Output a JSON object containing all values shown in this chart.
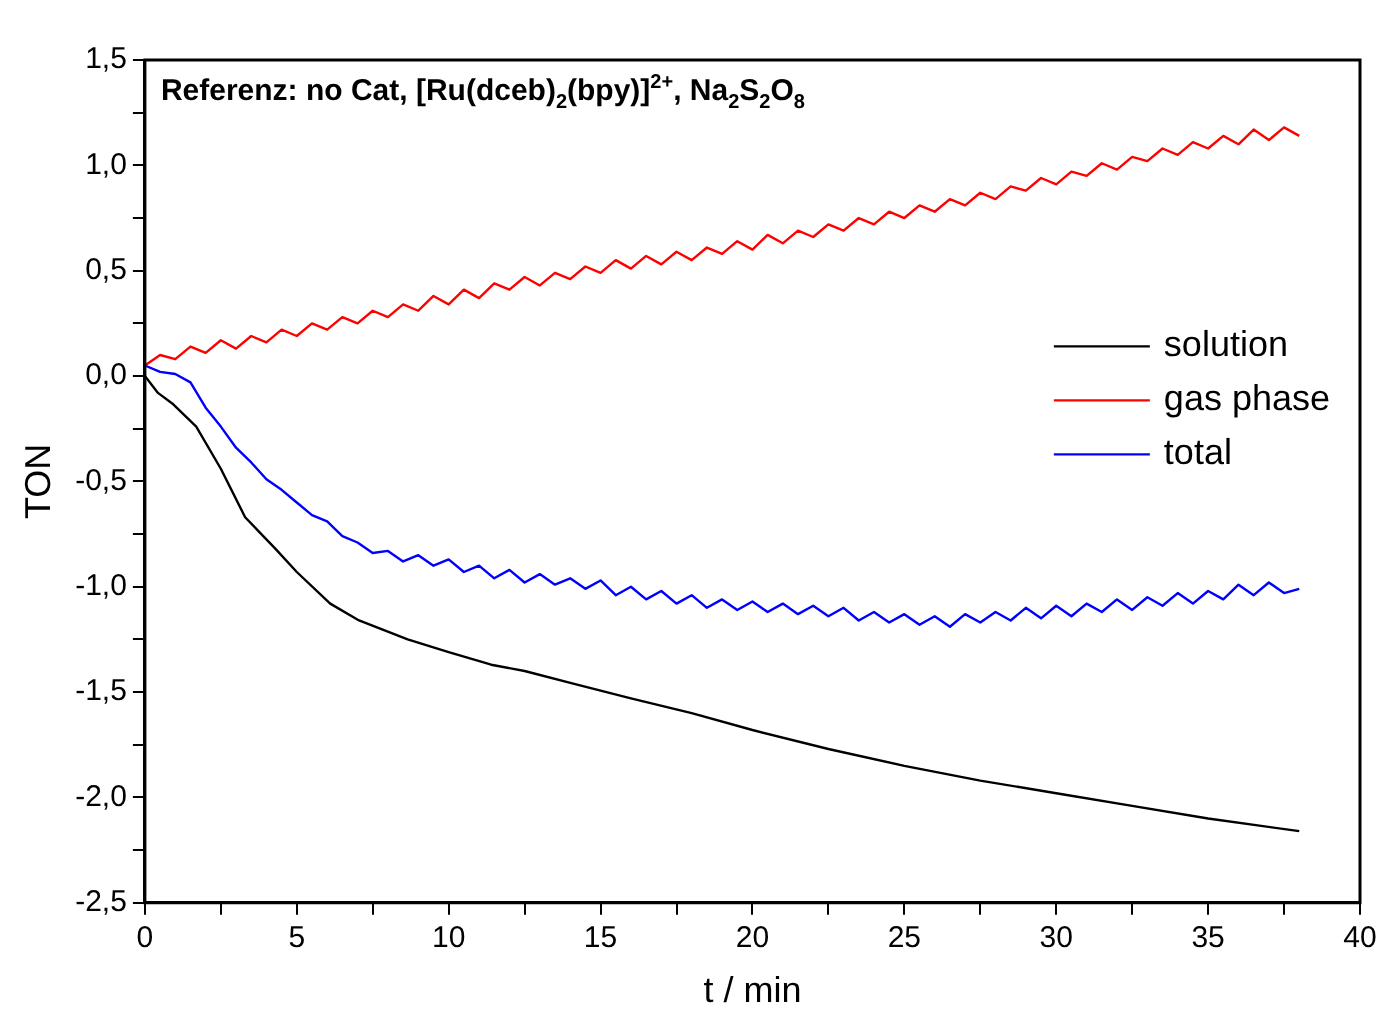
{
  "chart_data": {
    "type": "line",
    "xlabel": "t / min",
    "ylabel": "TON",
    "annotations": [
      "Referenz: no Cat, [Ru(dceb)$_{2}$(bpy)]$^{2+}$, Na$_{2}$S$_{2}$O$_{8}$"
    ],
    "xlim": [
      0,
      40
    ],
    "xticks": [
      0,
      {
        "value": 2.5,
        "label": null
      },
      5,
      {
        "value": 7.5,
        "label": null
      },
      10,
      {
        "value": 12.5,
        "label": null
      },
      15,
      {
        "value": 17.5,
        "label": null
      },
      20,
      {
        "value": 22.5,
        "label": null
      },
      25,
      {
        "value": 27.5,
        "label": null
      },
      30,
      {
        "value": 32.5,
        "label": null
      },
      35,
      {
        "value": 37.5,
        "label": null
      },
      40
    ],
    "ylim": [
      -2.5,
      1.5
    ],
    "yticks": [
      {
        "value": -2.5,
        "label": "-2,5"
      },
      {
        "value": -2.25,
        "label": null
      },
      {
        "value": -2,
        "label": "-2,0"
      },
      {
        "value": -1.75,
        "label": null
      },
      {
        "value": -1.5,
        "label": "-1,5"
      },
      {
        "value": -1.25,
        "label": null
      },
      {
        "value": -1,
        "label": "-1,0"
      },
      {
        "value": -0.75,
        "label": null
      },
      {
        "value": -0.5,
        "label": "-0,5"
      },
      {
        "value": -0.25,
        "label": null
      },
      {
        "value": 0,
        "label": "0,0"
      },
      {
        "value": 0.25,
        "label": null
      },
      {
        "value": 0.5,
        "label": "0,5"
      },
      {
        "value": 0.75,
        "label": null
      },
      {
        "value": 1,
        "label": "1,0"
      },
      {
        "value": 1.25,
        "label": null
      },
      {
        "value": 1.5,
        "label": "1,5"
      }
    ],
    "grid": false,
    "legend": "right",
    "marker": "none",
    "line_style": "solid",
    "x": [
      0,
      0.5,
      1,
      1.5,
      2,
      2.5,
      3,
      3.5,
      4,
      4.5,
      5,
      5.5,
      6,
      6.5,
      7,
      7.5,
      8,
      8.5,
      9,
      9.5,
      10,
      10.5,
      11,
      11.5,
      12,
      12.5,
      13,
      13.5,
      14,
      14.5,
      15,
      15.5,
      16,
      16.5,
      17,
      17.5,
      18,
      18.5,
      19,
      19.5,
      20,
      20.5,
      21,
      21.5,
      22,
      22.5,
      23,
      23.5,
      24,
      24.5,
      25,
      25.5,
      26,
      26.5,
      27,
      27.5,
      28,
      28.5,
      29,
      29.5,
      30,
      30.5,
      31,
      31.5,
      32,
      32.5,
      33,
      33.5,
      34,
      34.5,
      35,
      35.5,
      36,
      36.5,
      37,
      37.5,
      38
    ],
    "series": [
      {
        "name": "solution",
        "color": "#000000",
        "x": [
          0,
          0.43,
          0.9,
          1.69,
          2.5,
          3.3,
          4.3,
          5,
          6.1,
          7.05,
          8.65,
          10,
          11.4,
          12.5,
          14.1,
          16,
          18,
          20,
          22.5,
          25,
          27.5,
          30,
          32.5,
          35,
          38
        ],
        "values": [
          0,
          -0.08,
          -0.13,
          -0.24,
          -0.44,
          -0.67,
          -0.82,
          -0.93,
          -1.08,
          -1.16,
          -1.25,
          -1.31,
          -1.37,
          -1.4,
          -1.46,
          -1.53,
          -1.6,
          -1.68,
          -1.77,
          -1.85,
          -1.92,
          -1.98,
          -2.04,
          -2.1,
          -2.16
        ]
      },
      {
        "name": "gas phase",
        "color": "#ff0000",
        "values": [
          0.05,
          0.1,
          0.08,
          0.14,
          0.11,
          0.17,
          0.13,
          0.19,
          0.16,
          0.22,
          0.19,
          0.25,
          0.22,
          0.28,
          0.25,
          0.31,
          0.28,
          0.34,
          0.31,
          0.38,
          0.34,
          0.41,
          0.37,
          0.44,
          0.41,
          0.47,
          0.43,
          0.49,
          0.46,
          0.52,
          0.49,
          0.55,
          0.51,
          0.57,
          0.53,
          0.59,
          0.55,
          0.61,
          0.58,
          0.64,
          0.6,
          0.67,
          0.63,
          0.69,
          0.66,
          0.72,
          0.69,
          0.75,
          0.72,
          0.78,
          0.75,
          0.81,
          0.78,
          0.84,
          0.81,
          0.87,
          0.84,
          0.9,
          0.88,
          0.94,
          0.91,
          0.97,
          0.95,
          1.01,
          0.98,
          1.04,
          1.02,
          1.08,
          1.05,
          1.11,
          1.08,
          1.14,
          1.1,
          1.17,
          1.12,
          1.18,
          1.14
        ]
      },
      {
        "name": "total",
        "color": "#0000ff",
        "values": [
          0.05,
          0.02,
          0.01,
          -0.03,
          -0.15,
          -0.24,
          -0.34,
          -0.41,
          -0.49,
          -0.54,
          -0.6,
          -0.66,
          -0.69,
          -0.76,
          -0.79,
          -0.84,
          -0.83,
          -0.88,
          -0.85,
          -0.9,
          -0.87,
          -0.93,
          -0.9,
          -0.96,
          -0.92,
          -0.98,
          -0.94,
          -0.99,
          -0.96,
          -1.01,
          -0.97,
          -1.04,
          -1.0,
          -1.06,
          -1.02,
          -1.08,
          -1.04,
          -1.1,
          -1.06,
          -1.11,
          -1.07,
          -1.12,
          -1.08,
          -1.13,
          -1.09,
          -1.14,
          -1.1,
          -1.16,
          -1.12,
          -1.17,
          -1.13,
          -1.18,
          -1.14,
          -1.19,
          -1.13,
          -1.17,
          -1.12,
          -1.16,
          -1.1,
          -1.15,
          -1.09,
          -1.14,
          -1.08,
          -1.12,
          -1.06,
          -1.11,
          -1.05,
          -1.09,
          -1.03,
          -1.08,
          -1.02,
          -1.06,
          -0.99,
          -1.04,
          -0.98,
          -1.03,
          -1.01
        ]
      }
    ]
  }
}
